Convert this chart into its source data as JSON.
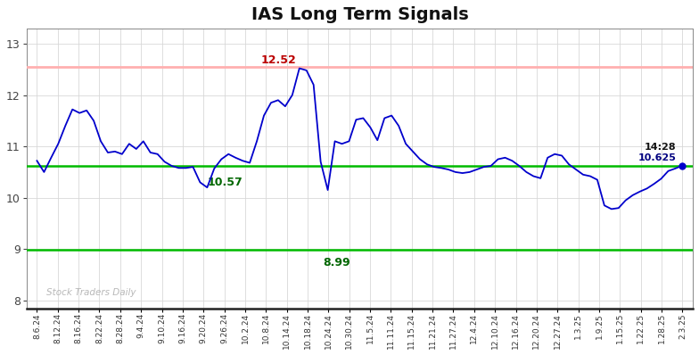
{
  "title": "IAS Long Term Signals",
  "watermark": "Stock Traders Daily",
  "ylim": [
    7.85,
    13.3
  ],
  "yticks": [
    8,
    9,
    10,
    11,
    12,
    13
  ],
  "red_hline": 12.55,
  "green_hline_mid": 10.625,
  "green_hline_low": 8.99,
  "annotation_peak_val": "12.52",
  "annotation_peak_color": "#bb0000",
  "annotation_mid_val": "10.57",
  "annotation_mid_color": "#006600",
  "annotation_low_val": "8.99",
  "annotation_low_color": "#006600",
  "annotation_end_time": "14:28",
  "annotation_end_val": "10.625",
  "annotation_end_color": "#000080",
  "line_color": "#0000cc",
  "red_hline_color": "#ffb0b0",
  "green_hline_color": "#00bb00",
  "x_labels": [
    "8.6.24",
    "8.12.24",
    "8.16.24",
    "8.22.24",
    "8.28.24",
    "9.4.24",
    "9.10.24",
    "9.16.24",
    "9.20.24",
    "9.26.24",
    "10.2.24",
    "10.8.24",
    "10.14.24",
    "10.18.24",
    "10.24.24",
    "10.30.24",
    "11.5.24",
    "11.11.24",
    "11.15.24",
    "11.21.24",
    "11.27.24",
    "12.4.24",
    "12.10.24",
    "12.16.24",
    "12.20.24",
    "12.27.24",
    "1.3.25",
    "1.9.25",
    "1.15.25",
    "1.22.25",
    "1.28.25",
    "2.3.25"
  ],
  "y_values": [
    10.72,
    10.5,
    10.78,
    11.05,
    11.4,
    11.72,
    11.65,
    11.7,
    11.5,
    11.1,
    10.88,
    10.9,
    10.85,
    11.05,
    10.95,
    11.1,
    10.88,
    10.85,
    10.7,
    10.62,
    10.58,
    10.58,
    10.6,
    10.3,
    10.2,
    10.57,
    10.75,
    10.85,
    10.78,
    10.72,
    10.68,
    11.1,
    11.6,
    11.85,
    11.9,
    11.78,
    12.0,
    12.52,
    12.48,
    12.2,
    10.7,
    10.15,
    11.1,
    11.05,
    11.1,
    11.52,
    11.55,
    11.37,
    11.12,
    11.55,
    11.6,
    11.4,
    11.05,
    10.9,
    10.75,
    10.65,
    10.6,
    10.58,
    10.55,
    10.5,
    10.48,
    10.5,
    10.55,
    10.6,
    10.62,
    10.75,
    10.78,
    10.72,
    10.62,
    10.5,
    10.42,
    10.38,
    10.78,
    10.85,
    10.82,
    10.65,
    10.55,
    10.45,
    10.42,
    10.35,
    9.85,
    9.78,
    9.8,
    9.95,
    10.05,
    10.12,
    10.18,
    10.27,
    10.37,
    10.52,
    10.57,
    10.625
  ]
}
